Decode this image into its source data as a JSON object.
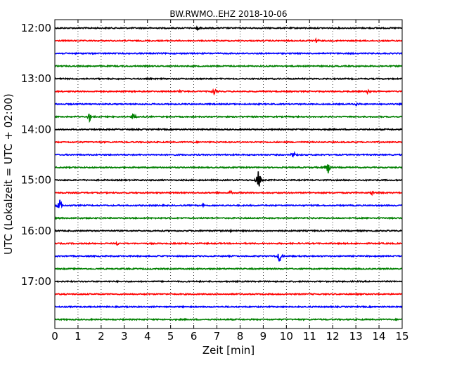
{
  "chart_data": {
    "type": "line",
    "title": "BW.RWMO..EHZ 2018-10-06",
    "xlabel": "Zeit  [min]",
    "ylabel": "UTC (Lokalzeit = UTC + 02:00)",
    "xlim": [
      0,
      15
    ],
    "x_ticks": [
      "0",
      "1",
      "2",
      "3",
      "4",
      "5",
      "6",
      "7",
      "8",
      "9",
      "10",
      "11",
      "12",
      "13",
      "14",
      "15"
    ],
    "y_ticks": [
      "12:00",
      "13:00",
      "14:00",
      "15:00",
      "16:00",
      "17:00"
    ],
    "grid": "vertical dotted",
    "trace_start_times": [
      "12:00",
      "12:15",
      "12:30",
      "12:45",
      "13:00",
      "13:15",
      "13:30",
      "13:45",
      "14:00",
      "14:15",
      "14:30",
      "14:45",
      "15:00",
      "15:15",
      "15:30",
      "15:45",
      "16:00",
      "16:15",
      "16:30",
      "16:45",
      "17:00",
      "17:15",
      "17:30",
      "17:45"
    ],
    "trace_colors": [
      "#000000",
      "#ff0000",
      "#0000ff",
      "#008000"
    ],
    "events": [
      {
        "trace": 0,
        "minute": 6.2,
        "amplitude": 0.3
      },
      {
        "trace": 1,
        "minute": 11.3,
        "amplitude": 0.25
      },
      {
        "trace": 5,
        "minute": 5.4,
        "amplitude": 0.3
      },
      {
        "trace": 5,
        "minute": 6.9,
        "amplitude": 0.5
      },
      {
        "trace": 5,
        "minute": 13.5,
        "amplitude": 0.25
      },
      {
        "trace": 6,
        "minute": 13.0,
        "amplitude": 0.35
      },
      {
        "trace": 7,
        "minute": 1.5,
        "amplitude": 0.6
      },
      {
        "trace": 7,
        "minute": 3.4,
        "amplitude": 0.6
      },
      {
        "trace": 10,
        "minute": 10.3,
        "amplitude": 0.6
      },
      {
        "trace": 11,
        "minute": 11.8,
        "amplitude": 1.2
      },
      {
        "trace": 12,
        "minute": 8.8,
        "amplitude": 1.6
      },
      {
        "trace": 13,
        "minute": 7.6,
        "amplitude": 0.3
      },
      {
        "trace": 13,
        "minute": 13.7,
        "amplitude": 0.3
      },
      {
        "trace": 14,
        "minute": 0.2,
        "amplitude": 1.0
      },
      {
        "trace": 14,
        "minute": 6.4,
        "amplitude": 0.25
      },
      {
        "trace": 16,
        "minute": 7.6,
        "amplitude": 0.2
      },
      {
        "trace": 17,
        "minute": 2.7,
        "amplitude": 0.2
      },
      {
        "trace": 18,
        "minute": 4.5,
        "amplitude": 0.2
      },
      {
        "trace": 18,
        "minute": 9.7,
        "amplitude": 0.9
      }
    ]
  }
}
